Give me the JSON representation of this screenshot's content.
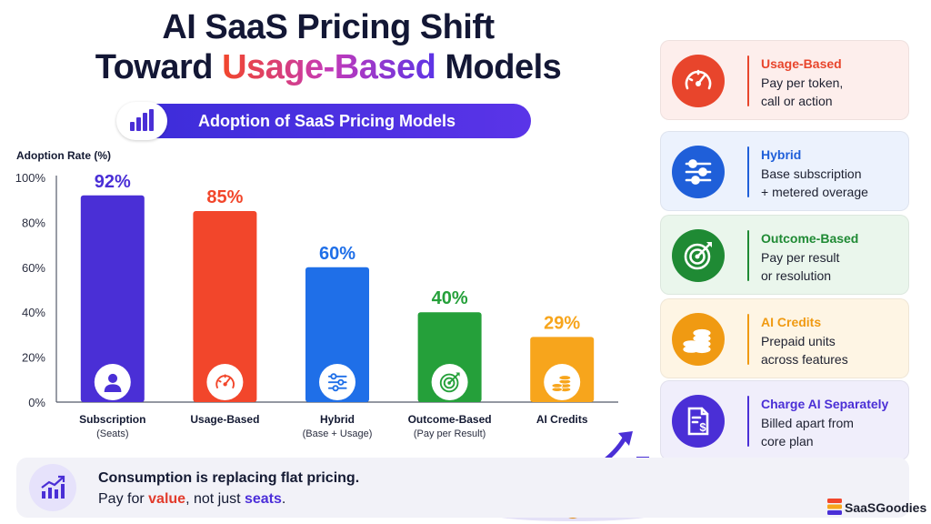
{
  "header": {
    "title_line1": "AI SaaS Pricing Shift",
    "title_line2_pre": "Toward ",
    "title_line2_highlight": "Usage-Based",
    "title_line2_post": " Models"
  },
  "subtitle_pill": {
    "text": "Adoption of SaaS Pricing Models",
    "icon": "bar-chart-icon"
  },
  "chart_data": {
    "type": "bar",
    "ylabel": "Adoption Rate (%)",
    "ylim": [
      0,
      100
    ],
    "yticks": [
      "0%",
      "20%",
      "40%",
      "60%",
      "80%",
      "100%"
    ],
    "grid": false,
    "categories": [
      "Subscription",
      "Usage-Based",
      "Hybrid",
      "Outcome-Based",
      "AI Credits"
    ],
    "category_sublabels": [
      "(Seats)",
      "",
      "(Base + Usage)",
      "(Pay per Result)",
      ""
    ],
    "values": [
      92,
      85,
      60,
      40,
      29
    ],
    "value_labels": [
      "92%",
      "85%",
      "60%",
      "40%",
      "29%"
    ],
    "colors": [
      "#4a2fd6",
      "#f2462b",
      "#1f6fe8",
      "#25a03a",
      "#f7a51c"
    ],
    "icons": [
      "user-icon",
      "speedometer-icon",
      "sliders-icon",
      "target-icon",
      "coins-icon"
    ]
  },
  "cards": [
    {
      "title": "Usage-Based",
      "line1": "Pay per token,",
      "line2": "call or action",
      "icon": "speedometer-icon",
      "color": "#e8452c",
      "bg": "#fdeeec"
    },
    {
      "title": "Hybrid",
      "line1": "Base subscription",
      "line2": "+ metered overage",
      "icon": "sliders-icon",
      "color": "#1f5fd9",
      "bg": "#ecf2fd"
    },
    {
      "title": "Outcome-Based",
      "line1": "Pay per result",
      "line2": "or resolution",
      "icon": "target-icon",
      "color": "#1f8a34",
      "bg": "#eaf6ec"
    },
    {
      "title": "AI Credits",
      "line1": "Prepaid units",
      "line2": "across features",
      "icon": "coins-icon",
      "color": "#f09a12",
      "bg": "#fef5e4"
    },
    {
      "title": "Charge AI Separately",
      "line1": "Billed apart from",
      "line2": "core plan",
      "icon": "invoice-dollar-icon",
      "color": "#4a2fd6",
      "bg": "#f0eefb"
    }
  ],
  "banner": {
    "line1": "Consumption is replacing flat pricing.",
    "line2_pre": "Pay for ",
    "line2_value": "value",
    "line2_mid": ", not just ",
    "line2_seats": "seats",
    "line2_post": ".",
    "icon": "growth-chart-icon"
  },
  "brand": {
    "name": "SaaSGoodies",
    "icon": "stacked-logo-icon"
  }
}
